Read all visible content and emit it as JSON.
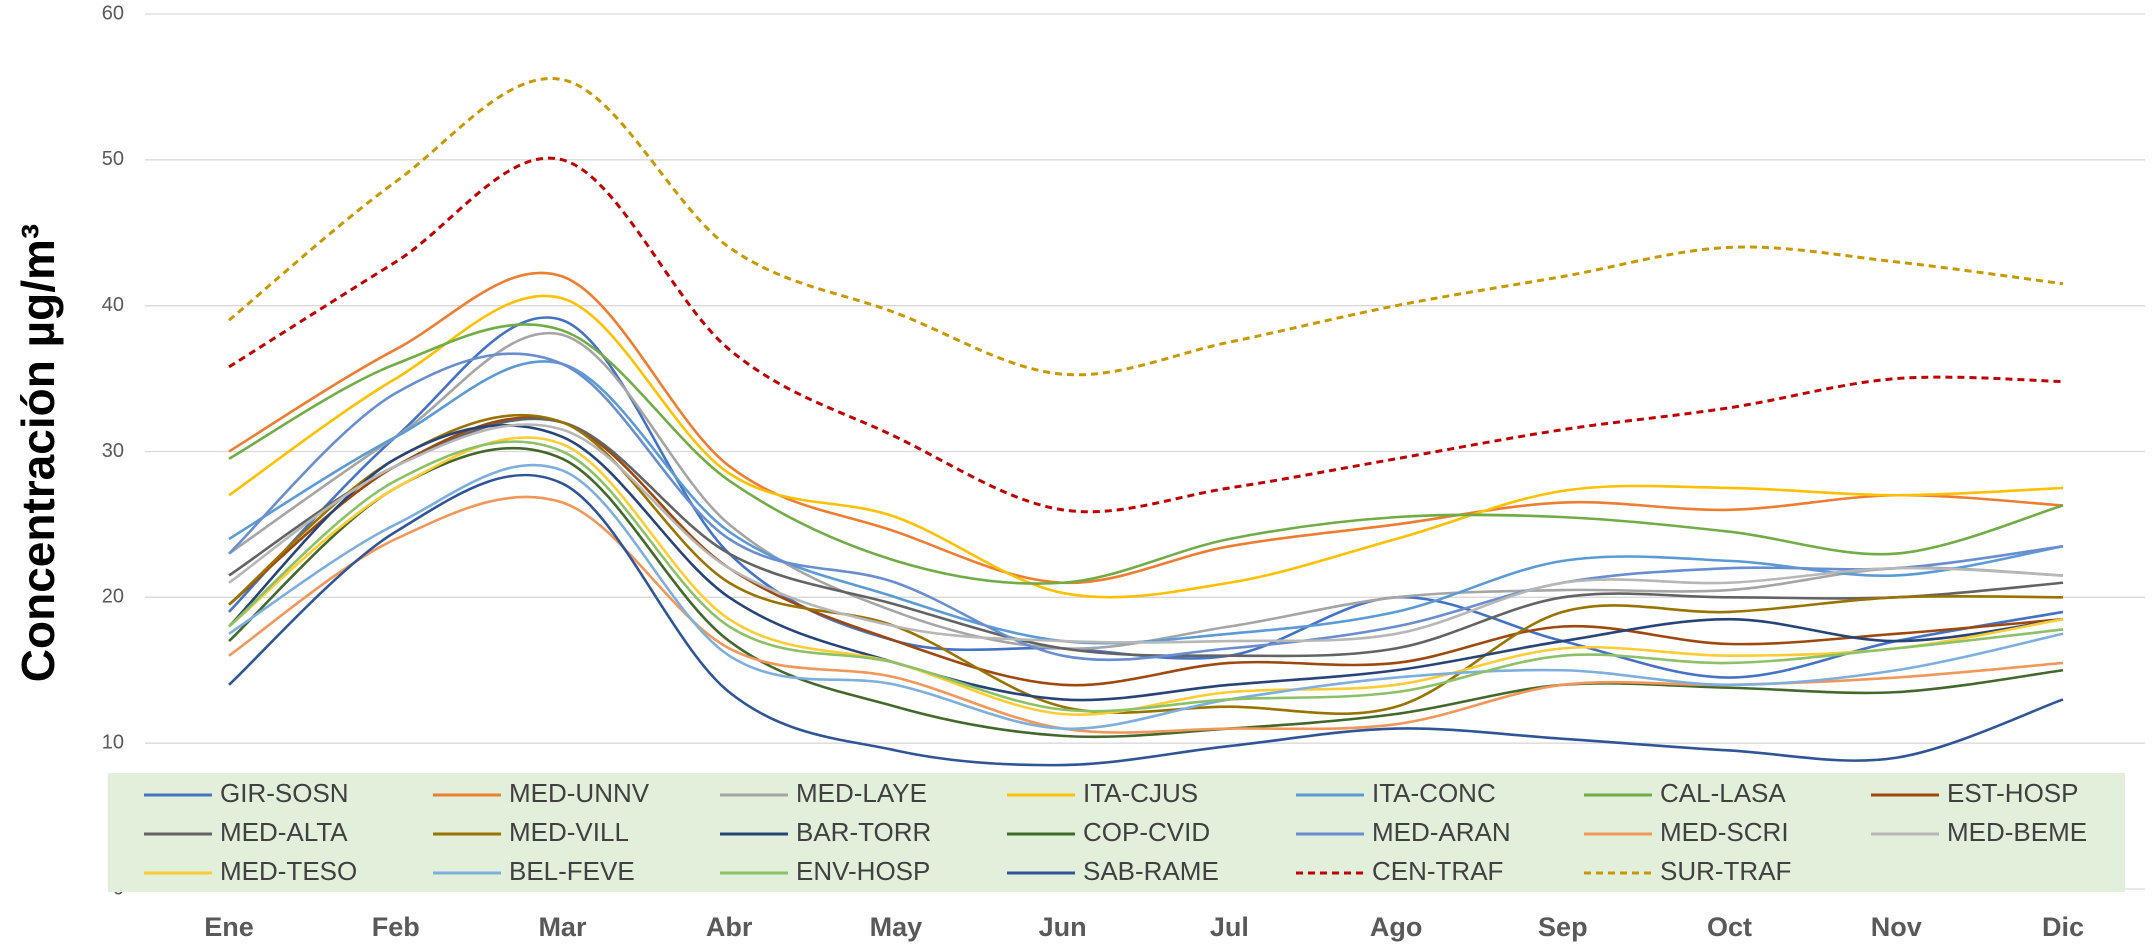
{
  "chart_data": {
    "type": "line",
    "y_label": "Concentración µg/m³",
    "categories": [
      "Ene",
      "Feb",
      "Mar",
      "Abr",
      "May",
      "Jun",
      "Jul",
      "Ago",
      "Sep",
      "Oct",
      "Nov",
      "Dic"
    ],
    "ylim": [
      0,
      60
    ],
    "yticks": [
      0,
      10,
      20,
      30,
      40,
      50,
      60
    ],
    "grid": true,
    "smooth": true,
    "legend": "bottom",
    "series": [
      {
        "name": "GIR-SOSN",
        "color": "#4472c4",
        "values": [
          19,
          31,
          39,
          23,
          17,
          16.5,
          16,
          20,
          17,
          14.5,
          17,
          19
        ]
      },
      {
        "name": "MED-UNNV",
        "color": "#ed7d31",
        "values": [
          30,
          37,
          42,
          29,
          24.5,
          21,
          23.5,
          25,
          26.5,
          26,
          27,
          26.3
        ]
      },
      {
        "name": "MED-LAYE",
        "color": "#a5a5a5",
        "values": [
          23,
          31,
          38,
          25,
          19,
          16.5,
          18,
          20,
          20.5,
          20.5,
          22,
          21.5
        ]
      },
      {
        "name": "ITA-CJUS",
        "color": "#ffc000",
        "values": [
          27,
          35,
          40.5,
          28.5,
          25.5,
          20.3,
          21,
          24,
          27.3,
          27.5,
          27,
          27.5
        ]
      },
      {
        "name": "ITA-CONC",
        "color": "#5b9bd5",
        "values": [
          24,
          31,
          36,
          24.5,
          20,
          17,
          17.5,
          19,
          22.5,
          22.5,
          21.5,
          23.5
        ]
      },
      {
        "name": "CAL-LASA",
        "color": "#70ad47",
        "values": [
          29.5,
          36,
          38.3,
          28,
          22.5,
          21,
          24,
          25.5,
          25.5,
          24.5,
          23,
          26.3
        ]
      },
      {
        "name": "EST-HOSP",
        "color": "#9e480e",
        "values": [
          19.5,
          29,
          32,
          22,
          17,
          14,
          15.5,
          15.5,
          18,
          16.8,
          17.5,
          18.5
        ]
      },
      {
        "name": "MED-ALTA",
        "color": "#636363",
        "values": [
          21.5,
          29,
          32,
          23,
          19.5,
          16.5,
          16,
          16.5,
          20,
          20,
          20,
          21
        ]
      },
      {
        "name": "MED-VILL",
        "color": "#997300",
        "values": [
          19.5,
          29.5,
          32,
          21,
          18,
          12.5,
          12.5,
          12.5,
          19,
          19,
          20,
          20
        ]
      },
      {
        "name": "BAR-TORR",
        "color": "#264478",
        "values": [
          18,
          29.5,
          31,
          20,
          15.5,
          13,
          14,
          15,
          17,
          18.5,
          17,
          18.5
        ]
      },
      {
        "name": "COP-CVID",
        "color": "#43682b",
        "values": [
          17,
          27.5,
          29.5,
          17,
          12.5,
          10.5,
          11,
          12,
          14,
          13.8,
          13.5,
          15
        ]
      },
      {
        "name": "MED-ARAN",
        "color": "#698ed0",
        "values": [
          23,
          34,
          36,
          24,
          21,
          16,
          16.5,
          18,
          21,
          22,
          22,
          23.5
        ]
      },
      {
        "name": "MED-SCRI",
        "color": "#f1975a",
        "values": [
          16,
          24,
          26.5,
          16.5,
          14.5,
          11,
          11,
          11.3,
          14,
          14,
          14.5,
          15.5
        ]
      },
      {
        "name": "MED-BEME",
        "color": "#b7b7b7",
        "values": [
          21,
          29,
          31.5,
          22,
          18,
          17,
          17,
          17.5,
          21,
          21,
          22,
          21.5
        ]
      },
      {
        "name": "MED-TESO",
        "color": "#ffcd33",
        "values": [
          18,
          27.5,
          30.5,
          18.5,
          15.5,
          12,
          13.5,
          14,
          16.5,
          16,
          16.5,
          18.5
        ]
      },
      {
        "name": "BEL-FEVE",
        "color": "#7cafdd",
        "values": [
          17.5,
          25,
          28.7,
          16,
          14,
          11,
          13,
          14.5,
          15,
          14,
          15,
          17.5
        ]
      },
      {
        "name": "ENV-HOSP",
        "color": "#8cc168",
        "values": [
          18,
          28,
          30,
          18,
          15.5,
          12.3,
          13,
          13.5,
          16,
          15.5,
          16.5,
          17.8
        ]
      },
      {
        "name": "SAB-RAME",
        "color": "#2f5597",
        "values": [
          14,
          24.5,
          27.8,
          13.5,
          9.5,
          8.5,
          9.8,
          11,
          10.3,
          9.5,
          9,
          13
        ]
      },
      {
        "name": "CEN-TRAF",
        "color": "#c00000",
        "dashed": true,
        "values": [
          35.8,
          43,
          50,
          37,
          31,
          26,
          27.5,
          29.5,
          31.5,
          33,
          35,
          34.8
        ]
      },
      {
        "name": "SUR-TRAF",
        "color": "#c89800",
        "dashed": true,
        "values": [
          39,
          48.5,
          55.5,
          44,
          39.5,
          35.3,
          37.5,
          40,
          42,
          44,
          43,
          41.5
        ]
      }
    ]
  }
}
